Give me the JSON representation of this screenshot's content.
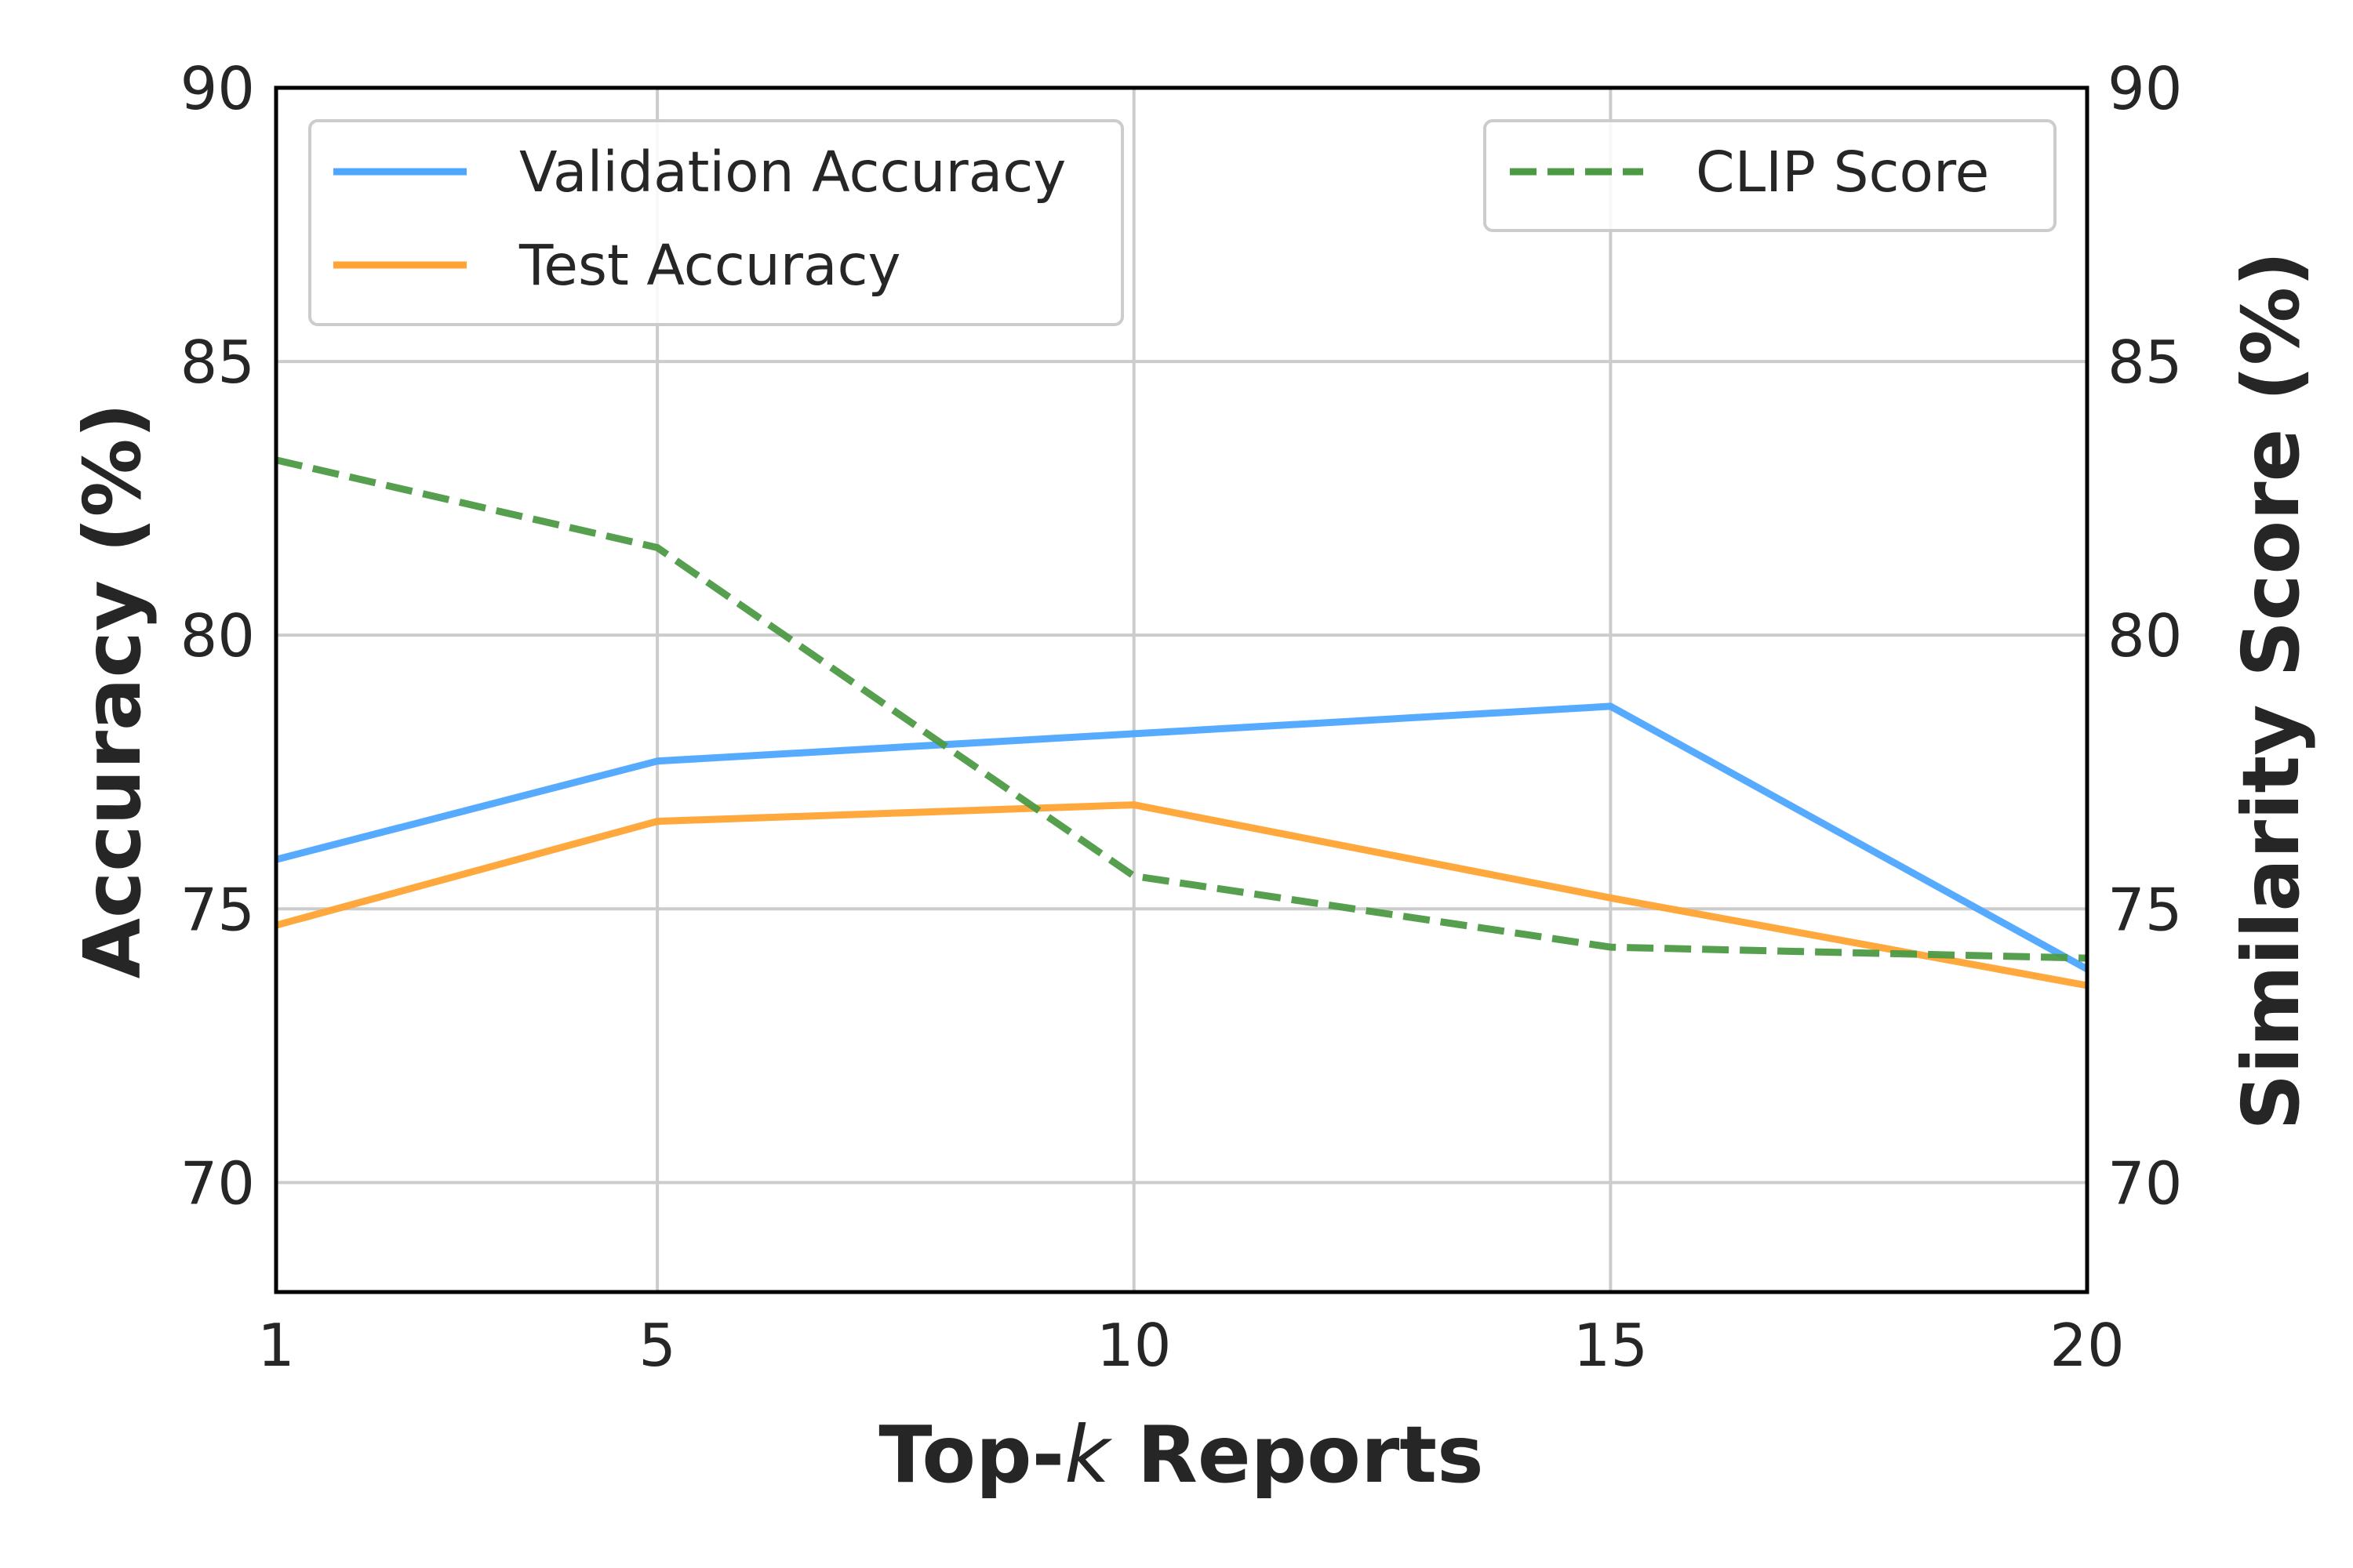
{
  "chart_data": {
    "type": "line",
    "x": [
      1,
      5,
      10,
      15,
      20
    ],
    "xlim": [
      1,
      20
    ],
    "xticks": [
      "1",
      "5",
      "10",
      "15",
      "20"
    ],
    "xlabel_prefix": "Top-",
    "xlabel_var": "k",
    "xlabel_suffix": " Reports",
    "ylabel_left": "Accuracy (%)",
    "ylabel_right": "Similarity Score (%)",
    "ylim_left": [
      68,
      90
    ],
    "ylim_right": [
      68,
      90
    ],
    "yticks_left": [
      "70",
      "75",
      "80",
      "85",
      "90"
    ],
    "yticks_right": [
      "70",
      "75",
      "80",
      "85",
      "90"
    ],
    "grid": true,
    "series": [
      {
        "name": "Validation Accuracy",
        "axis": "left",
        "style": "solid",
        "color": "#4da6ff",
        "values": [
          75.9,
          77.7,
          78.2,
          78.7,
          73.9
        ]
      },
      {
        "name": "Test Accuracy",
        "axis": "left",
        "style": "solid",
        "color": "#ffa333",
        "values": [
          74.7,
          76.6,
          76.9,
          75.2,
          73.6
        ]
      },
      {
        "name": "CLIP Score",
        "axis": "right",
        "style": "dashed",
        "color": "#4c9a44",
        "values": [
          83.2,
          81.6,
          75.6,
          74.3,
          74.1
        ]
      }
    ],
    "legend_left": [
      "Validation Accuracy",
      "Test Accuracy"
    ],
    "legend_right": [
      "CLIP Score"
    ],
    "legend_left_position": "top-left",
    "legend_right_position": "top-right"
  }
}
